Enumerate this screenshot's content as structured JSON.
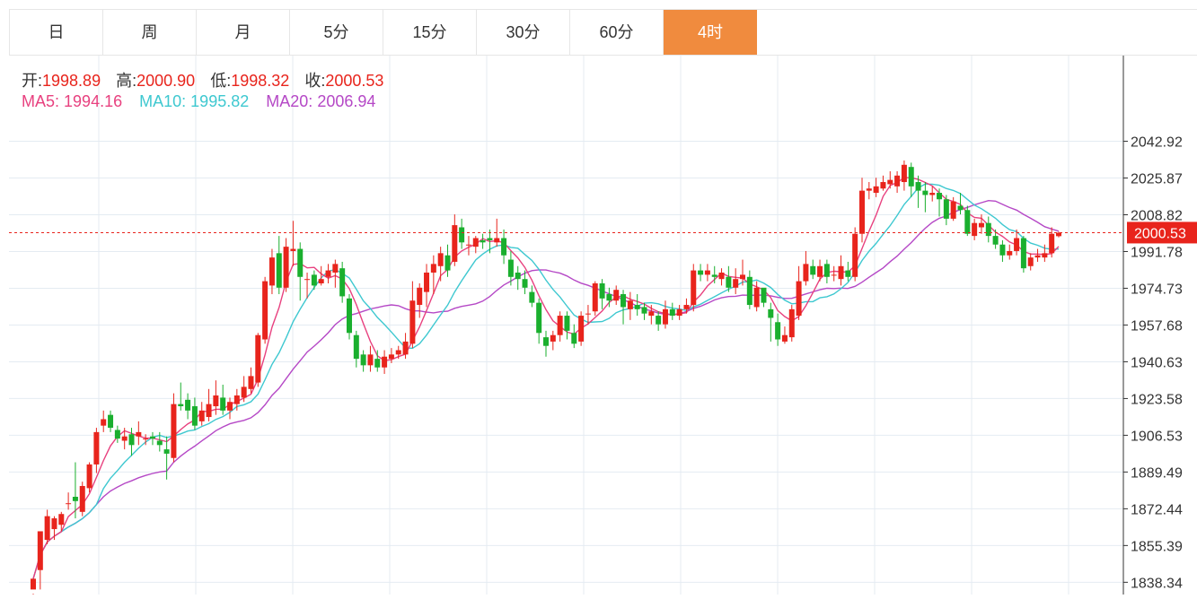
{
  "tabs": [
    {
      "label": "日",
      "active": false
    },
    {
      "label": "周",
      "active": false
    },
    {
      "label": "月",
      "active": false
    },
    {
      "label": "5分",
      "active": false
    },
    {
      "label": "15分",
      "active": false
    },
    {
      "label": "30分",
      "active": false
    },
    {
      "label": "60分",
      "active": false
    },
    {
      "label": "4时",
      "active": true
    }
  ],
  "info": {
    "open_label": "开:",
    "open_value": "1998.89",
    "high_label": "高:",
    "high_value": "2000.90",
    "low_label": "低:",
    "low_value": "1998.32",
    "close_label": "收:",
    "close_value": "2000.53",
    "ma5_label": "MA5:",
    "ma5_value": "1994.16",
    "ma10_label": "MA10:",
    "ma10_value": "1995.82",
    "ma20_label": "MA20:",
    "ma20_value": "2006.94"
  },
  "colors": {
    "up": "#e8241c",
    "down": "#1aaf2e",
    "ma5": "#e8417f",
    "ma10": "#3ec8d0",
    "ma20": "#b548c6",
    "grid": "#e4ebf2",
    "axis_text": "#333333",
    "last_price_bg": "#e8241c",
    "tab_active": "#f08b3e"
  },
  "chart_data": {
    "type": "candlestick",
    "y_ticks": [
      2042.92,
      2025.87,
      2008.82,
      1991.78,
      1974.73,
      1957.68,
      1940.63,
      1923.58,
      1906.53,
      1889.49,
      1872.44,
      1855.39,
      1838.34
    ],
    "ylim": [
      1832.66,
      2082.66
    ],
    "last_price": 2000.53,
    "last_price_label": "2000.53",
    "candles": [
      [
        1835,
        1840,
        1833,
        1832
      ],
      [
        1844,
        1862,
        1846,
        1835
      ],
      [
        1858,
        1869,
        1872,
        1856
      ],
      [
        1863,
        1868,
        1869,
        1858
      ],
      [
        1865,
        1870,
        1871,
        1862
      ],
      [
        1875,
        1875,
        1880,
        1872
      ],
      [
        1878,
        1876,
        1894,
        1868
      ],
      [
        1871,
        1883,
        1885,
        1869
      ],
      [
        1882,
        1893,
        1894,
        1880
      ],
      [
        1893,
        1908,
        1910,
        1889
      ],
      [
        1911,
        1914,
        1918,
        1908
      ],
      [
        1916,
        1910,
        1918,
        1908
      ],
      [
        1909,
        1905,
        1911,
        1903
      ],
      [
        1904,
        1906,
        1910,
        1900
      ],
      [
        1907,
        1902,
        1910,
        1897
      ],
      [
        1906,
        1908,
        1913,
        1902
      ],
      [
        1905,
        1905,
        1907,
        1902
      ],
      [
        1906,
        1905,
        1908,
        1902
      ],
      [
        1904,
        1902,
        1908,
        1899
      ],
      [
        1900,
        1898,
        1906,
        1886
      ],
      [
        1896,
        1921,
        1926,
        1894
      ],
      [
        1921,
        1920,
        1931,
        1918
      ],
      [
        1923,
        1918,
        1926,
        1914
      ],
      [
        1920,
        1911,
        1924,
        1909
      ],
      [
        1913,
        1918,
        1922,
        1911
      ],
      [
        1915,
        1921,
        1928,
        1913
      ],
      [
        1920,
        1925,
        1932,
        1916
      ],
      [
        1924,
        1918,
        1930,
        1916
      ],
      [
        1918,
        1922,
        1924,
        1914
      ],
      [
        1921,
        1925,
        1928,
        1918
      ],
      [
        1924,
        1929,
        1934,
        1922
      ],
      [
        1928,
        1934,
        1938,
        1926
      ],
      [
        1931,
        1953,
        1954,
        1929
      ],
      [
        1951,
        1978,
        1980,
        1949
      ],
      [
        1976,
        1989,
        1993,
        1972
      ],
      [
        1991,
        1975,
        1999,
        1972
      ],
      [
        1975,
        1994,
        1998,
        1973
      ],
      [
        1992,
        1993,
        2006,
        1985
      ],
      [
        1993,
        1980,
        1996,
        1969
      ],
      [
        1979,
        1979,
        1982,
        1970
      ],
      [
        1981,
        1976,
        1983,
        1974
      ],
      [
        1977,
        1979,
        1985,
        1976
      ],
      [
        1980,
        1983,
        1986,
        1977
      ],
      [
        1982,
        1986,
        1988,
        1975
      ],
      [
        1984,
        1971,
        1987,
        1968
      ],
      [
        1970,
        1954,
        1972,
        1951
      ],
      [
        1953,
        1942,
        1955,
        1938
      ],
      [
        1944,
        1939,
        1946,
        1936
      ],
      [
        1939,
        1944,
        1948,
        1936
      ],
      [
        1942,
        1938,
        1946,
        1936
      ],
      [
        1938,
        1943,
        1946,
        1935
      ],
      [
        1942,
        1944,
        1947,
        1940
      ],
      [
        1944,
        1946,
        1948,
        1942
      ],
      [
        1944,
        1950,
        1954,
        1942
      ],
      [
        1949,
        1969,
        1978,
        1947
      ],
      [
        1967,
        1975,
        1977,
        1961
      ],
      [
        1973,
        1982,
        1986,
        1966
      ],
      [
        1982,
        1986,
        1990,
        1972
      ],
      [
        1985,
        1991,
        1994,
        1978
      ],
      [
        1990,
        1983,
        1995,
        1980
      ],
      [
        1987,
        2004,
        2009,
        1985
      ],
      [
        2003,
        1996,
        2007,
        1993
      ],
      [
        1995,
        1995,
        1999,
        1990
      ],
      [
        1994,
        1998,
        1999,
        1991
      ],
      [
        1997,
        1996,
        2000,
        1993
      ],
      [
        1998,
        1997,
        2002,
        1991
      ],
      [
        1996,
        1998,
        2007,
        1994
      ],
      [
        1998,
        1990,
        2002,
        1986
      ],
      [
        1988,
        1980,
        1992,
        1976
      ],
      [
        1982,
        1979,
        1985,
        1974
      ],
      [
        1979,
        1975,
        1983,
        1972
      ],
      [
        1973,
        1968,
        1976,
        1966
      ],
      [
        1968,
        1954,
        1970,
        1949
      ],
      [
        1952,
        1948,
        1955,
        1943
      ],
      [
        1950,
        1953,
        1955,
        1946
      ],
      [
        1953,
        1962,
        1964,
        1950
      ],
      [
        1962,
        1955,
        1964,
        1951
      ],
      [
        1954,
        1949,
        1958,
        1947
      ],
      [
        1950,
        1962,
        1964,
        1948
      ],
      [
        1963,
        1963,
        1967,
        1958
      ],
      [
        1964,
        1977,
        1978,
        1962
      ],
      [
        1977,
        1970,
        1979,
        1965
      ],
      [
        1972,
        1969,
        1975,
        1966
      ],
      [
        1969,
        1974,
        1976,
        1967
      ],
      [
        1972,
        1966,
        1974,
        1958
      ],
      [
        1965,
        1969,
        1973,
        1960
      ],
      [
        1967,
        1965,
        1972,
        1962
      ],
      [
        1966,
        1963,
        1968,
        1960
      ],
      [
        1962,
        1964,
        1967,
        1958
      ],
      [
        1962,
        1958,
        1964,
        1955
      ],
      [
        1958,
        1965,
        1969,
        1956
      ],
      [
        1965,
        1962,
        1968,
        1960
      ],
      [
        1962,
        1965,
        1967,
        1960
      ],
      [
        1965,
        1967,
        1970,
        1963
      ],
      [
        1967,
        1983,
        1986,
        1964
      ],
      [
        1983,
        1981,
        1986,
        1978
      ],
      [
        1981,
        1983,
        1986,
        1978
      ],
      [
        1981,
        1980,
        1985,
        1977
      ],
      [
        1979,
        1982,
        1984,
        1976
      ],
      [
        1980,
        1975,
        1985,
        1973
      ],
      [
        1975,
        1979,
        1984,
        1972
      ],
      [
        1979,
        1981,
        1988,
        1976
      ],
      [
        1980,
        1967,
        1983,
        1965
      ],
      [
        1966,
        1975,
        1978,
        1964
      ],
      [
        1975,
        1968,
        1974,
        1966
      ],
      [
        1965,
        1961,
        1968,
        1950
      ],
      [
        1959,
        1951,
        1963,
        1948
      ],
      [
        1950,
        1953,
        1957,
        1949
      ],
      [
        1952,
        1965,
        1967,
        1950
      ],
      [
        1962,
        1978,
        1985,
        1960
      ],
      [
        1978,
        1986,
        1992,
        1976
      ],
      [
        1985,
        1981,
        1988,
        1979
      ],
      [
        1980,
        1985,
        1988,
        1978
      ],
      [
        1986,
        1980,
        1988,
        1977
      ],
      [
        1981,
        1981,
        1985,
        1978
      ],
      [
        1979,
        1985,
        1990,
        1976
      ],
      [
        1983,
        1980,
        1987,
        1978
      ],
      [
        1980,
        2000,
        2003,
        1978
      ],
      [
        2000,
        2020,
        2026,
        1996
      ],
      [
        2020,
        2021,
        2024,
        2016
      ],
      [
        2019,
        2022,
        2026,
        2017
      ],
      [
        2021,
        2024,
        2027,
        2020
      ],
      [
        2023,
        2025,
        2029,
        2021
      ],
      [
        2022,
        2027,
        2029,
        2019
      ],
      [
        2024,
        2032,
        2034,
        2020
      ],
      [
        2031,
        2022,
        2033,
        2017
      ],
      [
        2024,
        2020,
        2027,
        2012
      ],
      [
        2020,
        2018,
        2024,
        2010
      ],
      [
        2018,
        2019,
        2022,
        2015
      ],
      [
        2019,
        2016,
        2021,
        2008
      ],
      [
        2016,
        2007,
        2018,
        2004
      ],
      [
        2007,
        2015,
        2017,
        2006
      ],
      [
        2013,
        2011,
        2019,
        2009
      ],
      [
        2011,
        2000,
        2013,
        1999
      ],
      [
        1999,
        2005,
        2007,
        1997
      ],
      [
        2003,
        2005,
        2009,
        2000
      ],
      [
        2005,
        1999,
        2008,
        1996
      ],
      [
        1999,
        1995,
        2002,
        1993
      ],
      [
        1995,
        1990,
        1997,
        1987
      ],
      [
        1990,
        1992,
        1995,
        1988
      ],
      [
        1992,
        1998,
        2002,
        1990
      ],
      [
        1998,
        1984,
        1999,
        1982
      ],
      [
        1985,
        1989,
        1991,
        1983
      ],
      [
        1989,
        1990,
        1993,
        1987
      ],
      [
        1989,
        1991,
        1995,
        1987
      ],
      [
        1991,
        2000,
        2003,
        1989
      ],
      [
        1998.89,
        2000.53,
        2000.9,
        1998.32
      ]
    ]
  }
}
